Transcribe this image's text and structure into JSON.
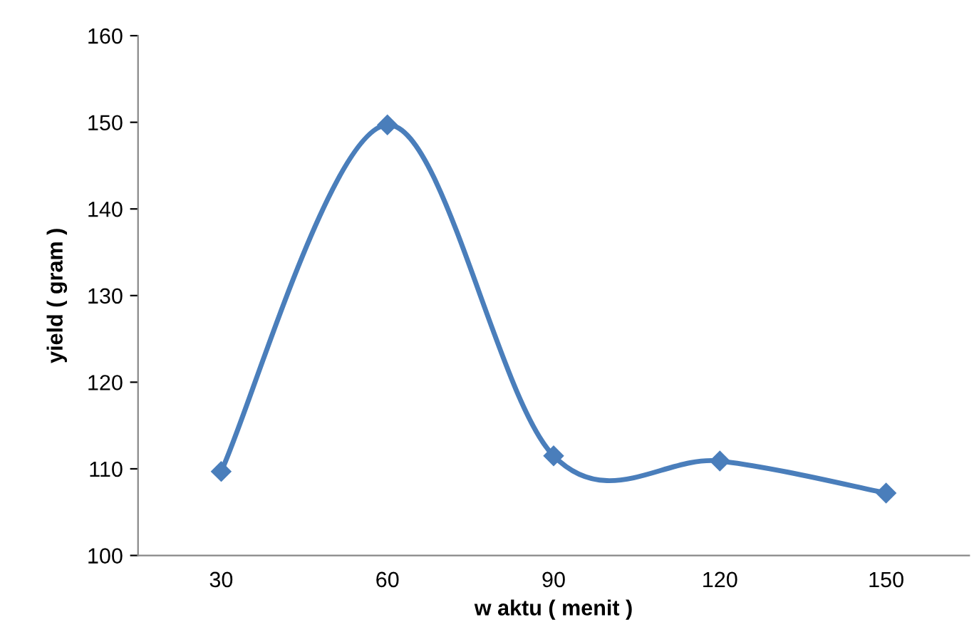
{
  "chart_data": {
    "type": "line",
    "xlabel": "w aktu ( menit )",
    "ylabel": "yield ( gram )",
    "categories": [
      "30",
      "60",
      "90",
      "120",
      "150"
    ],
    "series": [
      {
        "color": "#4a7ebb",
        "values": [
          109.7,
          149.7,
          111.5,
          110.9,
          107.2
        ]
      }
    ],
    "ylim": [
      100,
      160
    ],
    "yticks": [
      100,
      110,
      120,
      130,
      140,
      150,
      160
    ],
    "grid": false,
    "legend": false,
    "marker": "diamond",
    "line_style": "solid"
  }
}
